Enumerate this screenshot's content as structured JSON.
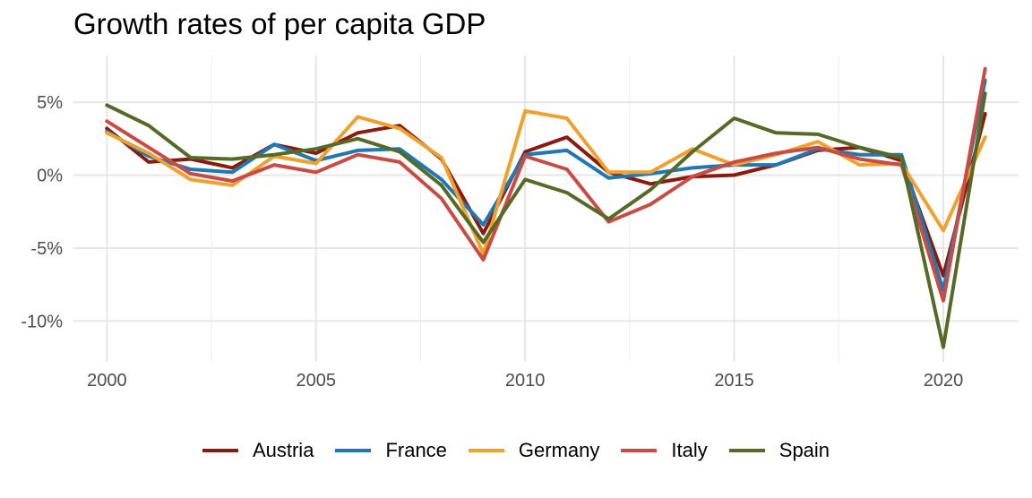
{
  "chart_data": {
    "type": "line",
    "title": "Growth rates of per capita GDP",
    "xlabel": "",
    "ylabel": "",
    "x": [
      2000,
      2001,
      2002,
      2003,
      2004,
      2005,
      2006,
      2007,
      2008,
      2009,
      2010,
      2011,
      2012,
      2013,
      2014,
      2015,
      2016,
      2017,
      2018,
      2019,
      2020,
      2021
    ],
    "xlim": [
      1999.2,
      2021.8
    ],
    "ylim": [
      -12.8,
      8.2
    ],
    "x_ticks": [
      2000,
      2005,
      2010,
      2015,
      2020
    ],
    "x_tick_labels": [
      "2000",
      "2005",
      "2010",
      "2015",
      "2020"
    ],
    "y_ticks": [
      -10,
      -5,
      0,
      5
    ],
    "y_tick_labels": [
      "-10%",
      "-5%",
      "0%",
      "5%"
    ],
    "grid": true,
    "legend_position": "bottom",
    "series": [
      {
        "name": "Austria",
        "color": "#8b1a0e",
        "values": [
          3.2,
          0.9,
          1.1,
          0.5,
          2.1,
          1.5,
          2.9,
          3.4,
          1.1,
          -4.0,
          1.6,
          2.6,
          0.2,
          -0.6,
          -0.1,
          0.0,
          0.7,
          1.7,
          1.9,
          1.0,
          -6.9,
          4.2
        ]
      },
      {
        "name": "France",
        "color": "#1f78b4",
        "values": [
          3.0,
          1.3,
          0.4,
          0.2,
          2.1,
          1.0,
          1.7,
          1.8,
          -0.3,
          -3.4,
          1.4,
          1.7,
          -0.2,
          0.1,
          0.5,
          0.7,
          0.7,
          1.8,
          1.4,
          1.4,
          -7.9,
          6.5
        ]
      },
      {
        "name": "Germany",
        "color": "#f0a02d",
        "values": [
          2.9,
          1.5,
          -0.3,
          -0.7,
          1.3,
          0.8,
          4.0,
          3.2,
          1.2,
          -5.4,
          4.4,
          3.9,
          0.2,
          0.2,
          1.8,
          0.7,
          1.4,
          2.3,
          0.7,
          0.8,
          -3.8,
          2.6
        ]
      },
      {
        "name": "Italy",
        "color": "#c94c44",
        "values": [
          3.7,
          1.9,
          0.1,
          -0.4,
          0.7,
          0.2,
          1.4,
          0.9,
          -1.6,
          -5.8,
          1.3,
          0.4,
          -3.2,
          -2.0,
          -0.1,
          0.9,
          1.5,
          1.9,
          1.1,
          0.7,
          -8.6,
          7.3
        ]
      },
      {
        "name": "Spain",
        "color": "#556b25",
        "values": [
          4.8,
          3.4,
          1.2,
          1.1,
          1.4,
          1.8,
          2.5,
          1.6,
          -0.7,
          -4.6,
          -0.3,
          -1.2,
          -3.0,
          -1.0,
          1.6,
          3.9,
          2.9,
          2.8,
          1.9,
          1.2,
          -11.8,
          5.6
        ]
      }
    ]
  }
}
